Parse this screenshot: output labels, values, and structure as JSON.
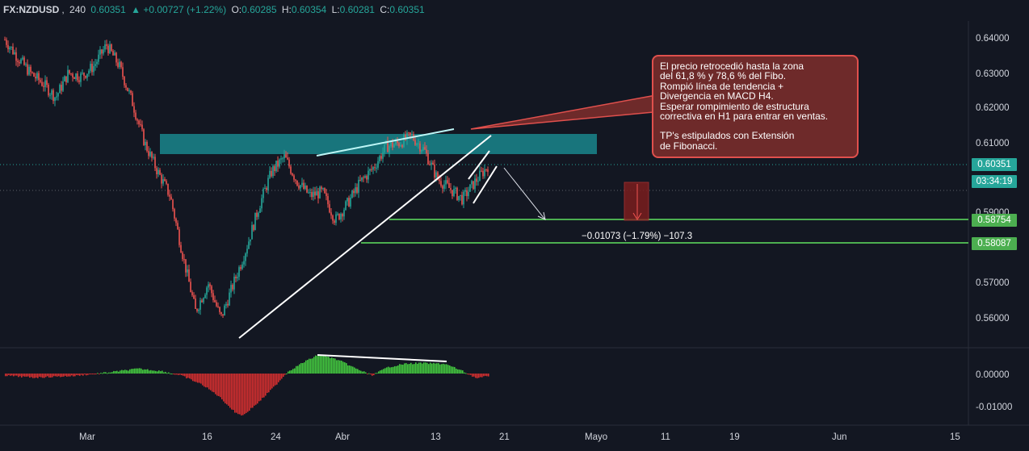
{
  "legend": {
    "symbol": "FX:NZDUSD",
    "interval": "240",
    "last": "0.60351",
    "change": "▲ +0.00727 (+1.22%)",
    "open_label": "O:",
    "open": "0.60285",
    "high_label": "H:",
    "high": "0.60354",
    "low_label": "L:",
    "low": "0.60281",
    "close_label": "C:",
    "close": "0.60351"
  },
  "annotation": {
    "lines": [
      "El precio retrocedió hasta la zona",
      "del 61,8 % y 78,6 % del Fibo.",
      "Rompió línea de tendencia +",
      "Divergencia en MACD H4.",
      "Esperar rompimiento de estructura",
      "correctiva en H1 para entrar en ventas."
    ],
    "lines2": [
      "TP's estipulados con Extensión",
      "de Fibonacci."
    ]
  },
  "measure_label": "−0.01073 (−1.79%) −107.3",
  "price_badges": {
    "current": "0.60351",
    "countdown": "03:34:19",
    "tp1": "0.58754",
    "tp2": "0.58087"
  },
  "colors": {
    "background": "#131722",
    "up": "#26a69a",
    "down": "#ef5350",
    "zone": "#1a7f86",
    "target_line": "#4caf50",
    "annotation_bg": "#6e2a2a",
    "annotation_border": "#e0504d"
  },
  "chart_data": {
    "type": "candlestick",
    "symbol": "FX:NZDUSD",
    "interval": "240",
    "x_ticks": [
      "Mar",
      "16",
      "24",
      "Abr",
      "13",
      "21",
      "Mayo",
      "11",
      "19",
      "Jun",
      "15"
    ],
    "y_ticks": [
      "0.64000",
      "0.63000",
      "0.62000",
      "0.61000",
      "0.59000",
      "0.57000",
      "0.56000"
    ],
    "indicator_ticks": [
      "0.00000",
      "-0.01000"
    ],
    "price_path": [
      [
        0.6395,
        0.6345
      ],
      [
        0.6345,
        0.63
      ],
      [
        0.63,
        0.627
      ],
      [
        0.627,
        0.623
      ],
      [
        0.623,
        0.63
      ],
      [
        0.63,
        0.629
      ],
      [
        0.629,
        0.632
      ],
      [
        0.632,
        0.638
      ],
      [
        0.638,
        0.632
      ],
      [
        0.632,
        0.622
      ],
      [
        0.622,
        0.61
      ],
      [
        0.61,
        0.602
      ],
      [
        0.602,
        0.595
      ],
      [
        0.595,
        0.578
      ],
      [
        0.578,
        0.562
      ],
      [
        0.562,
        0.57
      ],
      [
        0.57,
        0.56
      ],
      [
        0.56,
        0.57
      ],
      [
        0.57,
        0.58
      ],
      [
        0.58,
        0.592
      ],
      [
        0.592,
        0.602
      ],
      [
        0.602,
        0.606
      ],
      [
        0.606,
        0.599
      ],
      [
        0.599,
        0.595
      ],
      [
        0.595,
        0.596
      ],
      [
        0.596,
        0.588
      ],
      [
        0.588,
        0.593
      ],
      [
        0.593,
        0.599
      ],
      [
        0.599,
        0.603
      ],
      [
        0.603,
        0.609
      ],
      [
        0.609,
        0.61
      ],
      [
        0.61,
        0.612
      ],
      [
        0.612,
        0.608
      ],
      [
        0.608,
        0.6
      ],
      [
        0.6,
        0.597
      ],
      [
        0.597,
        0.594
      ],
      [
        0.594,
        0.599
      ],
      [
        0.599,
        0.6035
      ]
    ],
    "resistance_zone": [
      0.607,
      0.6125
    ],
    "targets": [
      0.58754,
      0.58087
    ],
    "current_price": 0.60351
  }
}
